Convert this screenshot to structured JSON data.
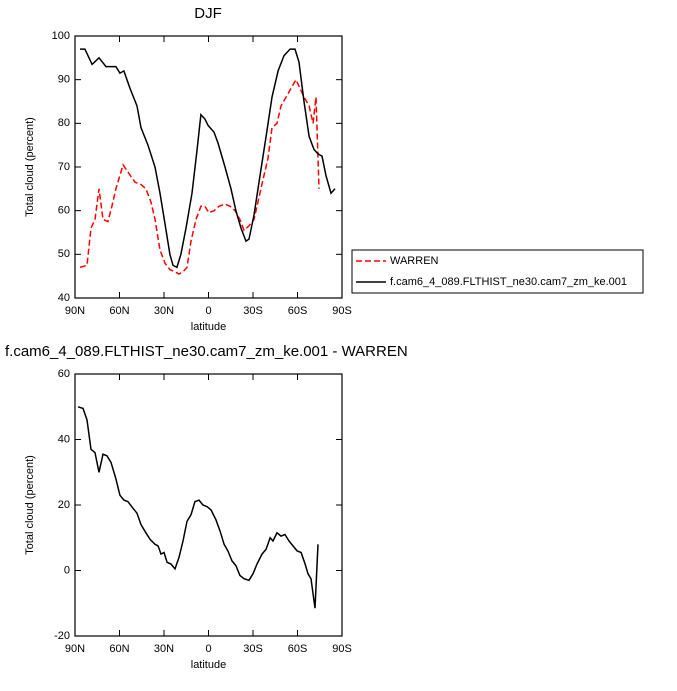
{
  "chart_data": [
    {
      "type": "line",
      "title": "DJF",
      "xlabel": "latitude",
      "ylabel": "Total cloud (percent)",
      "xlim": [
        90,
        -90
      ],
      "ylim": [
        40,
        100
      ],
      "xticks": [
        {
          "value": 90,
          "label": "90N"
        },
        {
          "value": 60,
          "label": "60N"
        },
        {
          "value": 30,
          "label": "30N"
        },
        0,
        {
          "value": -30,
          "label": "30S"
        },
        {
          "value": -60,
          "label": "60S"
        },
        {
          "value": -90,
          "label": "90S"
        }
      ],
      "yticks": [
        40,
        50,
        60,
        70,
        80,
        90,
        100
      ],
      "legend": "right",
      "series": [
        {
          "name": "WARREN",
          "color": "#ff0000",
          "dashed": true,
          "x": [
            86.6,
            81.9,
            79.2,
            76.5,
            73.8,
            71.1,
            67.8,
            65.1,
            62.4,
            57.6,
            53.6,
            49.5,
            45.5,
            42.2,
            38.8,
            36.1,
            32.7,
            29.3,
            26.0,
            22.6,
            19.9,
            17.2,
            14.5,
            11.8,
            8.4,
            5.1,
            2.4,
            -0.3,
            -3.7,
            -7.1,
            -11.1,
            -14.5,
            -17.9,
            -21.2,
            -23.9,
            -27.3,
            -30.7,
            -33.4,
            -36.7,
            -40.1,
            -42.8,
            -46.2,
            -48.9,
            -52.3,
            -55.6,
            -59.0,
            -61.7,
            -64.4,
            -67.8,
            -70.5,
            -72.5,
            -74.5
          ],
          "values": [
            47,
            47.5,
            56,
            58,
            65,
            58,
            57.5,
            61,
            65,
            70.5,
            68.5,
            66.5,
            66,
            65,
            62,
            58,
            51,
            48,
            46.5,
            46,
            45.5,
            46,
            47,
            53,
            58,
            61,
            61,
            59.5,
            60,
            61,
            61.5,
            61,
            60,
            58,
            55.5,
            56.5,
            58,
            62,
            67,
            72,
            79,
            80,
            84,
            86,
            88,
            90,
            88,
            86,
            84,
            80,
            86,
            65
          ]
        },
        {
          "name": "f.cam6_4_089.FLTHIST_ne30.cam7_zm_ke.001",
          "color": "#000000",
          "dashed": false,
          "x": [
            86.6,
            83.3,
            78.5,
            73.8,
            69.1,
            62.4,
            59.7,
            57.0,
            52.9,
            48.2,
            45.5,
            40.8,
            36.1,
            32.7,
            29.3,
            26.0,
            23.9,
            21.3,
            18.6,
            15.2,
            11.1,
            7.7,
            5.1,
            2.4,
            0.3,
            -3.7,
            -6.4,
            -11.1,
            -15.2,
            -18.5,
            -21.9,
            -25.3,
            -27.3,
            -30.7,
            -34.7,
            -38.8,
            -42.8,
            -46.9,
            -50.9,
            -55.0,
            -58.3,
            -61.0,
            -64.4,
            -67.8,
            -71.1,
            -73.8,
            -76.5,
            -79.2,
            -82.6,
            -85.3
          ],
          "values": [
            97,
            97,
            93.5,
            95,
            93,
            93,
            91.5,
            92,
            88,
            84,
            79,
            75,
            70,
            64,
            57,
            50,
            47.5,
            47,
            50,
            56,
            64,
            74,
            82,
            81,
            79.5,
            78,
            75.5,
            70,
            65,
            60,
            56,
            53,
            53.5,
            59,
            68,
            77,
            86,
            92,
            95.5,
            97,
            97,
            94,
            85,
            77,
            74,
            73,
            72.5,
            68,
            64,
            65
          ]
        }
      ]
    },
    {
      "type": "line",
      "title": "f.cam6_4_089.FLTHIST_ne30.cam7_zm_ke.001 - WARREN",
      "xlabel": "latitude",
      "ylabel": "Total cloud (percent)",
      "xlim": [
        90,
        -90
      ],
      "ylim": [
        -20,
        60
      ],
      "xticks": [
        {
          "value": 90,
          "label": "90N"
        },
        {
          "value": 60,
          "label": "60N"
        },
        {
          "value": 30,
          "label": "30N"
        },
        0,
        {
          "value": -30,
          "label": "30S"
        },
        {
          "value": -60,
          "label": "60S"
        },
        {
          "value": -90,
          "label": "90S"
        }
      ],
      "yticks": [
        -20,
        0,
        20,
        40,
        60
      ],
      "series": [
        {
          "color": "#000000",
          "dashed": false,
          "x": [
            88.0,
            84.6,
            81.9,
            79.2,
            76.5,
            73.8,
            71.1,
            68.4,
            65.7,
            62.4,
            59.7,
            57.0,
            54.3,
            50.9,
            48.2,
            45.5,
            42.2,
            39.4,
            36.1,
            34.0,
            32.0,
            30.0,
            27.9,
            25.3,
            22.6,
            19.9,
            17.2,
            14.5,
            11.8,
            9.2,
            6.4,
            3.8,
            1.0,
            -1.7,
            -5.0,
            -7.8,
            -10.5,
            -13.1,
            -15.8,
            -18.5,
            -21.2,
            -23.9,
            -27.3,
            -30.0,
            -32.7,
            -36.1,
            -38.8,
            -41.5,
            -43.5,
            -46.2,
            -48.9,
            -51.6,
            -54.3,
            -57.0,
            -59.7,
            -62.4,
            -65.1,
            -67.1,
            -69.1,
            -71.8,
            -73.8
          ],
          "values": [
            50,
            49.5,
            46,
            37,
            36,
            30,
            35.5,
            35,
            33,
            28,
            23,
            21.5,
            21,
            19,
            17.5,
            14,
            11.5,
            9.5,
            8,
            7.5,
            5,
            5.5,
            2.5,
            2,
            0.5,
            4,
            9,
            15,
            17,
            21,
            21.5,
            20,
            19.5,
            18.5,
            15.5,
            12,
            8,
            6,
            3,
            1.5,
            -1.5,
            -2.5,
            -3,
            -1,
            2,
            5,
            6.5,
            10,
            9,
            11.5,
            10.5,
            11,
            9,
            7.5,
            6,
            5.5,
            2,
            -1,
            -2.5,
            -11.5,
            8
          ]
        }
      ]
    }
  ]
}
